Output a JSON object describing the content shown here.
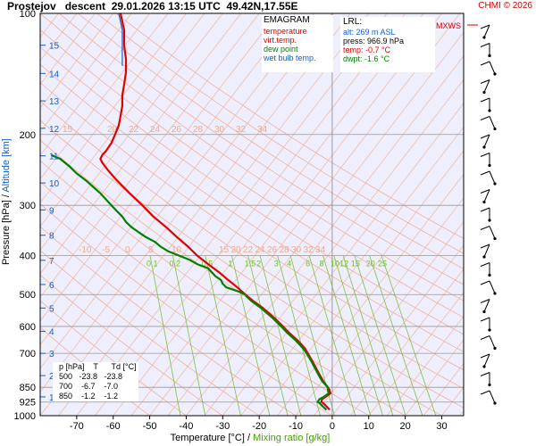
{
  "header": {
    "title": "Prostejov   descent  29.01.2026 13:15 UTC  49.42N,17.55E",
    "copyright": "CHMI © 2026"
  },
  "axes": {
    "ylabel_pressure": "Pressure [hPa]",
    "ylabel_sep": "/",
    "ylabel_altitude": "Altitude [km]",
    "xlabel_temp": "Temperature [°C]",
    "xlabel_sep": "/",
    "xlabel_mix": "Mixing ratio [g/kg]"
  },
  "legend": {
    "title": "EMAGRAM",
    "items": [
      {
        "label": "temperature",
        "color": "#e00000"
      },
      {
        "label": "virt.temp.",
        "color": "#e00000"
      },
      {
        "label": "dew point",
        "color": "#008000"
      },
      {
        "label": "wet bulb temp.",
        "color": "#1060d0"
      }
    ]
  },
  "lrl": {
    "title": "LRL:",
    "alt": "alt: 269 m ASL",
    "press": "press: 966.9 hPa",
    "temp": "temp: -0.7 °C",
    "dwpt": "dwpt: -1.6 °C"
  },
  "ptable": {
    "header": "  p [hPa]    T      Td [°C]",
    "rows": [
      "  500   -23.8   -23.8",
      "  700    -6.7    -7.0",
      "  850    -1.2    -1.2"
    ]
  },
  "mxws_label": "MXWS",
  "colors": {
    "temperature": "#e00000",
    "dewpoint": "#008000",
    "wetbulb": "#1060d0",
    "isotherm": "#f0b8a0",
    "mixing": "#80c040",
    "background": "#eeeefc"
  },
  "chart_data": {
    "type": "line",
    "x_axis": {
      "label": "Temperature [°C]",
      "ticks": [
        -70,
        -60,
        -50,
        -40,
        -30,
        -20,
        -10,
        0,
        10,
        20,
        30
      ],
      "range": [
        -80,
        36
      ]
    },
    "y_axis": {
      "label": "Pressure [hPa]",
      "scale": "log",
      "ticks": [
        100,
        200,
        300,
        400,
        500,
        600,
        700,
        850,
        925,
        1000
      ],
      "range": [
        1000,
        100
      ]
    },
    "altitude_ticks_km": [
      1,
      2,
      3,
      4,
      5,
      6,
      7,
      8,
      9,
      10,
      11,
      12,
      13,
      14,
      15
    ],
    "altitude_tick_pressures": [
      898,
      795,
      700,
      617,
      540,
      472,
      411,
      356,
      308,
      264,
      226,
      193,
      165,
      141,
      120
    ],
    "potential_temp_labels_upper": [
      "15",
      "20",
      "22",
      "24",
      "26",
      "28",
      "30",
      "32",
      "34"
    ],
    "potential_temp_labels_lower": [
      "-10",
      "-5",
      "0",
      "5",
      "10",
      "15",
      "20",
      "22",
      "24",
      "26",
      "28",
      "30",
      "32",
      "34"
    ],
    "mixing_ratio_labels": [
      "0.1",
      "0.2",
      "0.5",
      "1",
      "1.5",
      "2",
      "3",
      "4",
      "6",
      "8",
      "10",
      "12",
      "15",
      "20",
      "25"
    ],
    "mixing_ratio_values": [
      0.1,
      0.2,
      0.5,
      1,
      1.5,
      2,
      3,
      4,
      6,
      8,
      10,
      12,
      15,
      20,
      25
    ],
    "series": [
      {
        "name": "temperature",
        "pressure": [
          967,
          950,
          930,
          925,
          910,
          900,
          880,
          860,
          850,
          820,
          790,
          760,
          730,
          700,
          680,
          650,
          620,
          600,
          570,
          540,
          520,
          500,
          480,
          460,
          440,
          420,
          400,
          380,
          360,
          340,
          320,
          300,
          280,
          260,
          245,
          235,
          230,
          225,
          220,
          210,
          200,
          190,
          180,
          170,
          160,
          150,
          140,
          130,
          120,
          110,
          100
        ],
        "values": [
          -0.7,
          -1.5,
          -2.5,
          -3,
          -2.8,
          -2,
          -0.5,
          -0.8,
          -1.2,
          -2.5,
          -3.5,
          -4.5,
          -5.5,
          -6.7,
          -7.5,
          -9.5,
          -12,
          -13.5,
          -16,
          -19,
          -21.5,
          -23.8,
          -26,
          -28.5,
          -31,
          -34,
          -37,
          -39.5,
          -42.5,
          -45.5,
          -49,
          -52,
          -55.5,
          -59,
          -61.5,
          -63,
          -63.5,
          -63,
          -62,
          -60.5,
          -59.5,
          -58.5,
          -58,
          -57.5,
          -57.5,
          -57,
          -56.5,
          -56.5,
          -57,
          -57,
          -58
        ]
      },
      {
        "name": "dew point",
        "pressure": [
          967,
          950,
          930,
          925,
          910,
          900,
          880,
          860,
          850,
          820,
          790,
          760,
          730,
          700,
          680,
          650,
          620,
          600,
          570,
          540,
          520,
          505,
          500,
          490,
          480,
          470,
          460,
          450,
          440,
          430,
          420,
          410,
          400,
          390,
          380,
          370,
          360,
          350,
          340,
          330,
          320,
          310,
          300,
          290,
          280,
          270,
          260,
          250,
          240,
          230,
          225
        ],
        "values": [
          -1.6,
          -2.5,
          -3.5,
          -4,
          -3.5,
          -2.5,
          -1,
          -1.2,
          -1.2,
          -2.8,
          -3.8,
          -4.8,
          -5.8,
          -7,
          -8,
          -10,
          -12.5,
          -14,
          -16.5,
          -19.5,
          -22,
          -23.5,
          -23.8,
          -26,
          -29,
          -30,
          -30.5,
          -32,
          -33,
          -34,
          -37,
          -39,
          -42,
          -45,
          -47,
          -48.5,
          -51,
          -53,
          -55,
          -56.5,
          -57.5,
          -59,
          -60.5,
          -62,
          -63.5,
          -65.5,
          -67.5,
          -70,
          -72,
          -74.5,
          -77
        ]
      },
      {
        "name": "wet bulb temp.",
        "pressure": [
          135,
          120,
          110,
          100
        ],
        "values": [
          -57.5,
          -57.5,
          -57.5,
          -58.5
        ]
      }
    ]
  }
}
